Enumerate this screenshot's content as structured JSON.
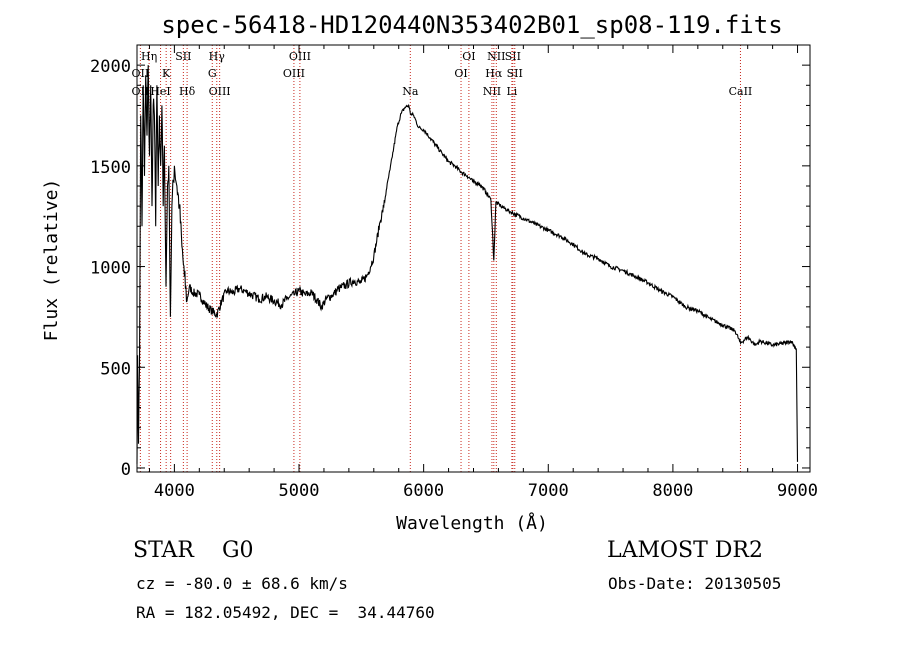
{
  "chart_data": {
    "type": "line",
    "title": "spec-56418-HD120440N353402B01_sp08-119.fits",
    "xlabel": "Wavelength (Å)",
    "ylabel": "Flux (relative)",
    "xlim": [
      3700,
      9100
    ],
    "ylim": [
      -20,
      2100
    ],
    "xticks": [
      4000,
      5000,
      6000,
      7000,
      8000,
      9000
    ],
    "yticks": [
      0,
      500,
      1000,
      1500,
      2000
    ],
    "grid": false,
    "series": [
      {
        "color": "#000000",
        "points": [
          [
            3700,
            20
          ],
          [
            3705,
            560
          ],
          [
            3712,
            120
          ],
          [
            3720,
            500
          ],
          [
            3730,
            1750
          ],
          [
            3740,
            1200
          ],
          [
            3750,
            1900
          ],
          [
            3760,
            1450
          ],
          [
            3770,
            1950
          ],
          [
            3780,
            1650
          ],
          [
            3790,
            2000
          ],
          [
            3800,
            1550
          ],
          [
            3810,
            1900
          ],
          [
            3820,
            1300
          ],
          [
            3830,
            1800
          ],
          [
            3840,
            1750
          ],
          [
            3850,
            1200
          ],
          [
            3860,
            1900
          ],
          [
            3870,
            1400
          ],
          [
            3880,
            1750
          ],
          [
            3890,
            1500
          ],
          [
            3900,
            1800
          ],
          [
            3910,
            1300
          ],
          [
            3920,
            1600
          ],
          [
            3933,
            900
          ],
          [
            3945,
            1400
          ],
          [
            3955,
            1500
          ],
          [
            3968,
            750
          ],
          [
            3980,
            1300
          ],
          [
            4000,
            1500
          ],
          [
            4020,
            1400
          ],
          [
            4040,
            1300
          ],
          [
            4060,
            1100
          ],
          [
            4080,
            950
          ],
          [
            4101,
            830
          ],
          [
            4120,
            900
          ],
          [
            4150,
            870
          ],
          [
            4200,
            860
          ],
          [
            4250,
            810
          ],
          [
            4300,
            780
          ],
          [
            4340,
            760
          ],
          [
            4380,
            830
          ],
          [
            4420,
            880
          ],
          [
            4470,
            870
          ],
          [
            4520,
            890
          ],
          [
            4560,
            880
          ],
          [
            4620,
            860
          ],
          [
            4680,
            840
          ],
          [
            4740,
            850
          ],
          [
            4800,
            830
          ],
          [
            4861,
            810
          ],
          [
            4900,
            840
          ],
          [
            4960,
            860
          ],
          [
            5000,
            880
          ],
          [
            5050,
            860
          ],
          [
            5100,
            870
          ],
          [
            5150,
            830
          ],
          [
            5180,
            800
          ],
          [
            5220,
            840
          ],
          [
            5270,
            860
          ],
          [
            5320,
            890
          ],
          [
            5380,
            910
          ],
          [
            5440,
            930
          ],
          [
            5500,
            920
          ],
          [
            5550,
            960
          ],
          [
            5600,
            1050
          ],
          [
            5650,
            1220
          ],
          [
            5680,
            1300
          ],
          [
            5700,
            1380
          ],
          [
            5730,
            1480
          ],
          [
            5760,
            1590
          ],
          [
            5790,
            1700
          ],
          [
            5820,
            1760
          ],
          [
            5850,
            1790
          ],
          [
            5880,
            1800
          ],
          [
            5893,
            1760
          ],
          [
            5920,
            1750
          ],
          [
            5960,
            1690
          ],
          [
            6000,
            1680
          ],
          [
            6050,
            1640
          ],
          [
            6100,
            1600
          ],
          [
            6150,
            1560
          ],
          [
            6200,
            1520
          ],
          [
            6250,
            1500
          ],
          [
            6300,
            1470
          ],
          [
            6350,
            1450
          ],
          [
            6400,
            1420
          ],
          [
            6450,
            1410
          ],
          [
            6500,
            1370
          ],
          [
            6540,
            1330
          ],
          [
            6563,
            1030
          ],
          [
            6580,
            1320
          ],
          [
            6620,
            1300
          ],
          [
            6700,
            1270
          ],
          [
            6800,
            1240
          ],
          [
            6900,
            1210
          ],
          [
            7000,
            1180
          ],
          [
            7100,
            1150
          ],
          [
            7200,
            1110
          ],
          [
            7300,
            1060
          ],
          [
            7400,
            1040
          ],
          [
            7500,
            1000
          ],
          [
            7600,
            980
          ],
          [
            7700,
            950
          ],
          [
            7800,
            920
          ],
          [
            7900,
            880
          ],
          [
            8000,
            850
          ],
          [
            8100,
            800
          ],
          [
            8200,
            780
          ],
          [
            8300,
            740
          ],
          [
            8400,
            710
          ],
          [
            8500,
            680
          ],
          [
            8542,
            620
          ],
          [
            8600,
            650
          ],
          [
            8662,
            610
          ],
          [
            8700,
            630
          ],
          [
            8800,
            610
          ],
          [
            8900,
            620
          ],
          [
            8950,
            630
          ],
          [
            8990,
            590
          ],
          [
            9000,
            30
          ]
        ]
      }
    ],
    "line_markers": [
      {
        "wl": 3727,
        "labels": [
          [
            "OII",
            2
          ],
          [
            "OII",
            3
          ]
        ]
      },
      {
        "wl": 3797,
        "labels": [
          [
            "Hη",
            1
          ]
        ]
      },
      {
        "wl": 3889,
        "labels": [
          [
            "HeI",
            3
          ]
        ]
      },
      {
        "wl": 3934,
        "labels": [
          [
            "K",
            2
          ]
        ]
      },
      {
        "wl": 3970,
        "labels": []
      },
      {
        "wl": 4072,
        "labels": [
          [
            "SII",
            1
          ]
        ]
      },
      {
        "wl": 4102,
        "labels": [
          [
            "Hδ",
            3
          ]
        ]
      },
      {
        "wl": 4304,
        "labels": [
          [
            "G",
            2
          ]
        ]
      },
      {
        "wl": 4340,
        "labels": [
          [
            "Hγ",
            1
          ]
        ]
      },
      {
        "wl": 4363,
        "labels": [
          [
            "OIII",
            3
          ]
        ]
      },
      {
        "wl": 4959,
        "labels": [
          [
            "OIII",
            2
          ]
        ]
      },
      {
        "wl": 5007,
        "labels": [
          [
            "OIII",
            1
          ]
        ]
      },
      {
        "wl": 5893,
        "labels": [
          [
            "Na",
            3
          ]
        ]
      },
      {
        "wl": 6300,
        "labels": [
          [
            "OI",
            2
          ]
        ]
      },
      {
        "wl": 6363,
        "labels": [
          [
            "OI",
            1
          ]
        ]
      },
      {
        "wl": 6548,
        "labels": [
          [
            "NII",
            3
          ]
        ]
      },
      {
        "wl": 6563,
        "labels": [
          [
            "Hα",
            2
          ]
        ]
      },
      {
        "wl": 6583,
        "labels": [
          [
            "NII",
            1
          ]
        ]
      },
      {
        "wl": 6708,
        "labels": [
          [
            "Li",
            3
          ]
        ]
      },
      {
        "wl": 6716,
        "labels": [
          [
            "SII",
            1
          ]
        ]
      },
      {
        "wl": 6731,
        "labels": [
          [
            "SII",
            2
          ]
        ]
      },
      {
        "wl": 8542,
        "labels": [
          [
            "CaII",
            3
          ]
        ]
      }
    ],
    "marker_color": "#c8281e"
  },
  "info": {
    "classification": "STAR    G0",
    "survey": "LAMOST DR2",
    "redshift": "cz = -80.0 ± 68.6 km/s",
    "obs_date": "Obs-Date: 20130505",
    "coords": "RA = 182.05492, DEC =  34.44760"
  }
}
